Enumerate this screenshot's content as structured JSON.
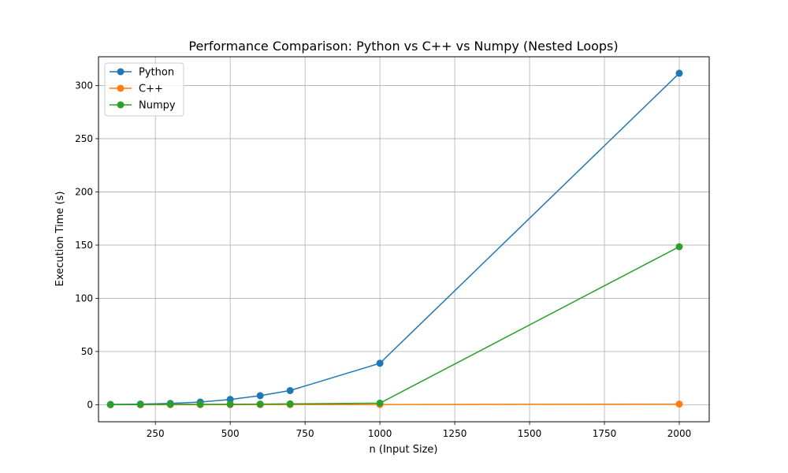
{
  "chart_data": {
    "type": "line",
    "title": "Performance Comparison: Python vs C++ vs Numpy (Nested Loops)",
    "xlabel": "n (Input Size)",
    "ylabel": "Execution Time (s)",
    "xlim": [
      60,
      2100
    ],
    "ylim": [
      -16,
      327
    ],
    "xticks": [
      250,
      500,
      750,
      1000,
      1250,
      1500,
      1750,
      2000
    ],
    "yticks": [
      0,
      50,
      100,
      150,
      200,
      250,
      300
    ],
    "grid": true,
    "legend_position": "top-left",
    "x": [
      100,
      200,
      300,
      400,
      500,
      600,
      700,
      1000,
      2000
    ],
    "series": [
      {
        "name": "Python",
        "color": "#1f77b4",
        "values": [
          0.3,
          0.6,
          1.2,
          2.5,
          5.0,
          8.5,
          13.3,
          39.0,
          311.5
        ]
      },
      {
        "name": "C++",
        "color": "#ff7f0e",
        "values": [
          0.0,
          0.01,
          0.02,
          0.03,
          0.05,
          0.07,
          0.09,
          0.2,
          0.6
        ]
      },
      {
        "name": "Numpy",
        "color": "#2ca02c",
        "values": [
          0.1,
          0.2,
          0.4,
          0.4,
          0.5,
          0.6,
          0.8,
          1.5,
          148.5
        ]
      }
    ]
  }
}
